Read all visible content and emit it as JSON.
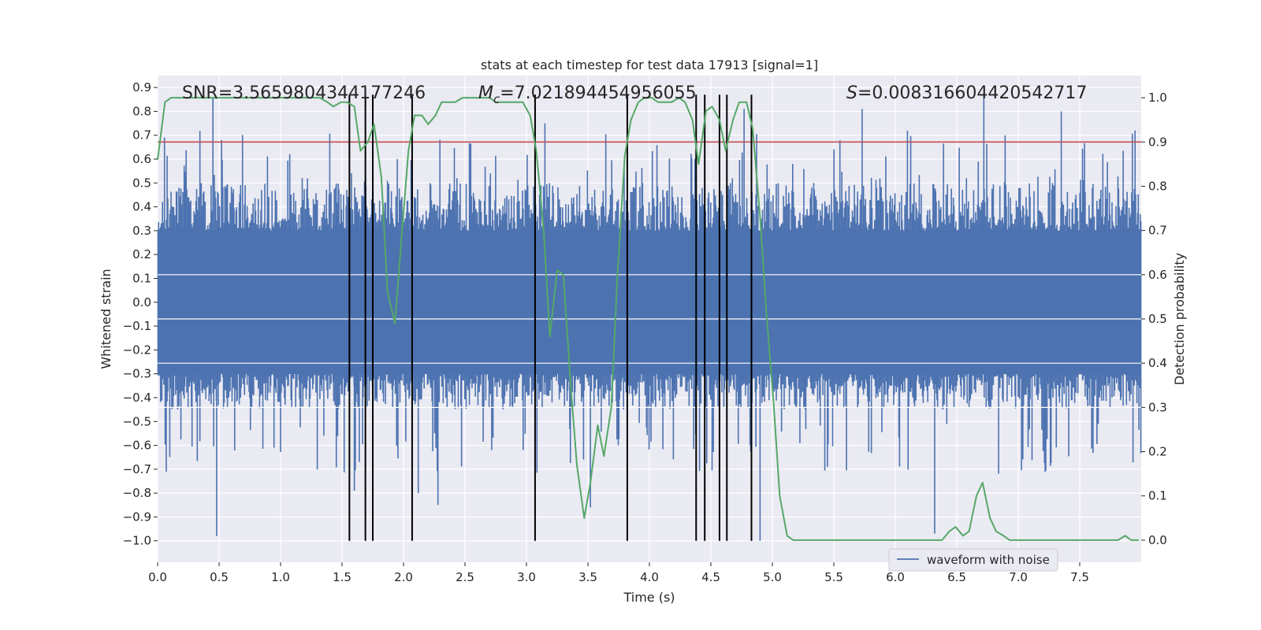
{
  "chart_data": {
    "type": "line",
    "title": "stats at each timestep for test data 17913 [signal=1]",
    "xlabel": "Time (s)",
    "ylabel": "Whitened strain",
    "y2label": "Detection probability",
    "xlim": [
      0.0,
      8.0
    ],
    "ylim": [
      -1.09,
      0.95
    ],
    "y2lim": [
      -0.05,
      1.05
    ],
    "x_ticks": [
      0.0,
      0.5,
      1.0,
      1.5,
      2.0,
      2.5,
      3.0,
      3.5,
      4.0,
      4.5,
      5.0,
      5.5,
      6.0,
      6.5,
      7.0,
      7.5
    ],
    "y_ticks": [
      0.9,
      0.8,
      0.7,
      0.6,
      0.5,
      0.4,
      0.3,
      0.2,
      0.1,
      0.0,
      -0.1,
      -0.2,
      -0.3,
      -0.4,
      -0.5,
      -0.6,
      -0.7,
      -0.8,
      -0.9,
      -1.0
    ],
    "y2_ticks": [
      1.0,
      0.9,
      0.8,
      0.7,
      0.6,
      0.5,
      0.4,
      0.3,
      0.2,
      0.1,
      0.0
    ],
    "annotations": {
      "snr": "SNR=3.5659804344177246",
      "mc_prefix": "M",
      "mc_sub": "c",
      "mc_value": "=7.021894454956055",
      "s_prefix": "S",
      "s_value": "=0.008316604420542717"
    },
    "legend": {
      "label": "waveform with noise",
      "position": "lower-right"
    },
    "threshold": {
      "value": 0.9,
      "axis": "right",
      "color": "#c44e52"
    },
    "vlines": {
      "x": [
        1.56,
        1.69,
        1.75,
        2.07,
        3.07,
        3.82,
        4.38,
        4.45,
        4.57,
        4.63,
        4.83
      ],
      "ymin": -1.0,
      "ymax": 0.87,
      "color": "#000000"
    },
    "series": [
      {
        "name": "waveform with noise",
        "axis": "left",
        "color": "#4c72b0",
        "style": "noise",
        "core_range": [
          -0.3,
          0.3
        ],
        "envelope_range": [
          -0.45,
          0.5
        ],
        "spikes": [
          {
            "x": 0.45,
            "y": 0.86
          },
          {
            "x": 0.48,
            "y": -0.98
          },
          {
            "x": 0.07,
            "y": -0.71
          },
          {
            "x": 1.6,
            "y": -0.79
          },
          {
            "x": 2.12,
            "y": -0.8
          },
          {
            "x": 2.28,
            "y": -0.85
          },
          {
            "x": 3.15,
            "y": 0.75
          },
          {
            "x": 3.52,
            "y": -0.86
          },
          {
            "x": 4.77,
            "y": 0.81
          },
          {
            "x": 6.32,
            "y": -0.97
          },
          {
            "x": 6.72,
            "y": 0.87
          },
          {
            "x": 4.9,
            "y": -1.0
          },
          {
            "x": 5.73,
            "y": 0.81
          },
          {
            "x": 7.35,
            "y": 0.8
          },
          {
            "x": 7.95,
            "y": 0.72
          }
        ]
      },
      {
        "name": "detection probability",
        "axis": "right",
        "color": "#55a868",
        "x": [
          0.0,
          0.06,
          0.11,
          0.17,
          0.22,
          0.28,
          0.33,
          0.39,
          0.44,
          0.5,
          0.55,
          0.61,
          0.66,
          0.72,
          0.77,
          0.83,
          0.88,
          0.94,
          0.99,
          1.05,
          1.1,
          1.16,
          1.21,
          1.27,
          1.32,
          1.38,
          1.43,
          1.49,
          1.54,
          1.6,
          1.65,
          1.71,
          1.76,
          1.82,
          1.87,
          1.93,
          1.98,
          2.04,
          2.09,
          2.15,
          2.2,
          2.26,
          2.31,
          2.37,
          2.42,
          2.48,
          2.53,
          2.59,
          2.64,
          2.7,
          2.75,
          2.81,
          2.86,
          2.92,
          2.97,
          3.03,
          3.08,
          3.14,
          3.19,
          3.25,
          3.3,
          3.36,
          3.41,
          3.47,
          3.52,
          3.58,
          3.63,
          3.69,
          3.74,
          3.8,
          3.85,
          3.91,
          3.96,
          4.02,
          4.07,
          4.13,
          4.18,
          4.24,
          4.29,
          4.35,
          4.4,
          4.46,
          4.51,
          4.57,
          4.62,
          4.68,
          4.73,
          4.79,
          4.84,
          4.9,
          4.95,
          5.01,
          5.06,
          5.12,
          5.17,
          5.23,
          5.28,
          5.34,
          5.39,
          5.45,
          5.5,
          5.56,
          5.61,
          5.67,
          5.72,
          5.78,
          5.83,
          5.89,
          5.94,
          6.0,
          6.05,
          6.11,
          6.16,
          6.22,
          6.27,
          6.33,
          6.38,
          6.44,
          6.49,
          6.55,
          6.6,
          6.66,
          6.71,
          6.77,
          6.82,
          6.88,
          6.93,
          6.99,
          7.04,
          7.1,
          7.15,
          7.21,
          7.26,
          7.32,
          7.37,
          7.43,
          7.48,
          7.54,
          7.59,
          7.65,
          7.7,
          7.76,
          7.81,
          7.87,
          7.92,
          7.98
        ],
        "values": [
          0.86,
          0.99,
          1.0,
          1.0,
          1.0,
          1.0,
          1.0,
          1.0,
          1.0,
          1.0,
          1.0,
          1.0,
          1.0,
          1.0,
          1.0,
          1.0,
          1.0,
          1.0,
          1.0,
          1.0,
          1.0,
          1.0,
          1.0,
          1.0,
          1.0,
          0.99,
          0.98,
          0.99,
          0.99,
          0.98,
          0.88,
          0.9,
          0.94,
          0.82,
          0.56,
          0.49,
          0.67,
          0.88,
          0.96,
          0.96,
          0.94,
          0.96,
          0.99,
          0.99,
          0.99,
          1.0,
          1.0,
          1.0,
          1.0,
          1.0,
          0.99,
          0.99,
          0.99,
          0.99,
          0.99,
          0.96,
          0.88,
          0.7,
          0.46,
          0.61,
          0.6,
          0.35,
          0.17,
          0.05,
          0.13,
          0.26,
          0.19,
          0.3,
          0.6,
          0.87,
          0.95,
          0.99,
          1.0,
          1.0,
          0.99,
          0.99,
          0.99,
          1.0,
          0.99,
          0.95,
          0.85,
          0.97,
          0.98,
          0.95,
          0.88,
          0.95,
          0.99,
          0.99,
          0.93,
          0.73,
          0.52,
          0.31,
          0.1,
          0.01,
          0.0,
          0.0,
          0.0,
          0.0,
          0.0,
          0.0,
          0.0,
          0.0,
          0.0,
          0.0,
          0.0,
          0.0,
          0.0,
          0.0,
          0.0,
          0.0,
          0.0,
          0.0,
          0.0,
          0.0,
          0.0,
          0.0,
          0.0,
          0.02,
          0.03,
          0.01,
          0.02,
          0.1,
          0.13,
          0.05,
          0.02,
          0.01,
          0.0,
          0.0,
          0.0,
          0.0,
          0.0,
          0.0,
          0.0,
          0.0,
          0.0,
          0.0,
          0.0,
          0.0,
          0.0,
          0.0,
          0.0,
          0.0,
          0.0,
          0.01,
          0.0,
          0.0
        ]
      }
    ]
  }
}
